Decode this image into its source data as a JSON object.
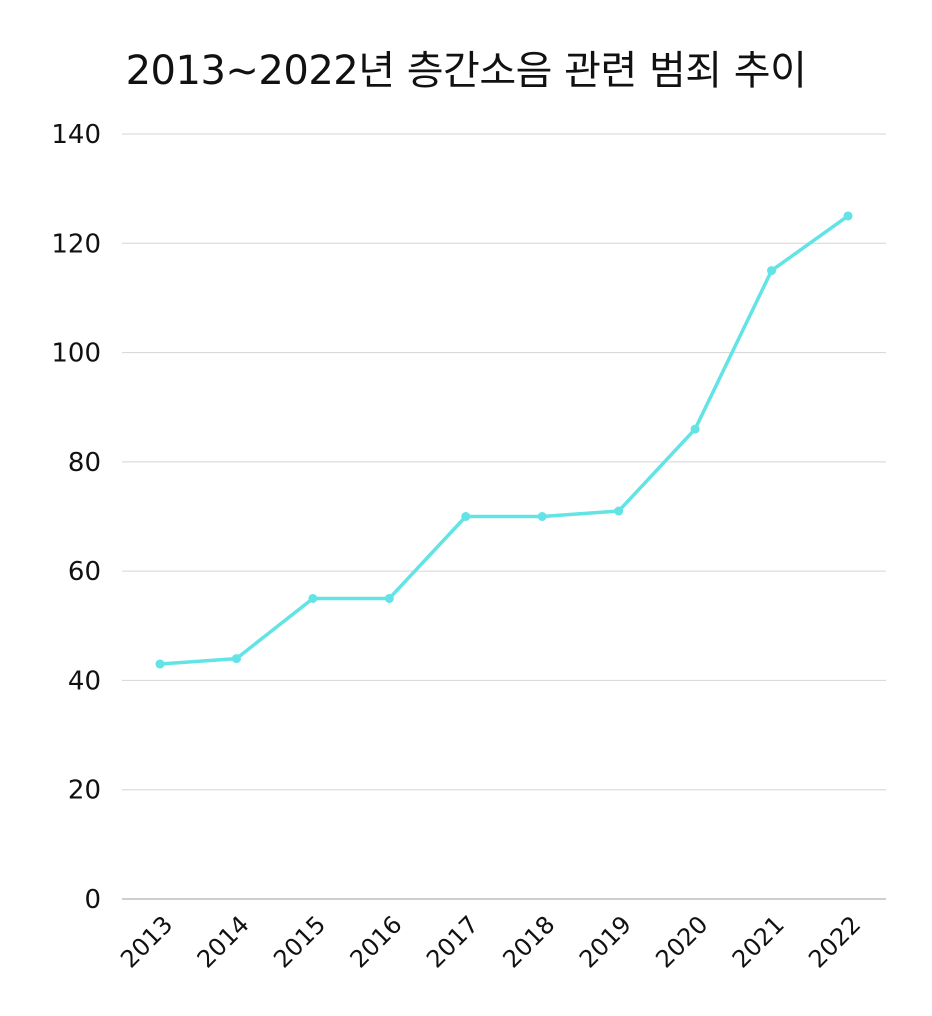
{
  "chart_data": {
    "type": "line",
    "title": "2013~2022년 층간소음 관련 범죄 추이",
    "xlabel": "",
    "ylabel": "",
    "categories": [
      "2013",
      "2014",
      "2015",
      "2016",
      "2017",
      "2018",
      "2019",
      "2020",
      "2021",
      "2022"
    ],
    "series": [
      {
        "values": [
          43,
          44,
          55,
          55,
          70,
          70,
          71,
          86,
          115,
          125
        ],
        "color": "#62e3e6"
      }
    ],
    "ylim": [
      0,
      140
    ],
    "yticks": [
      0,
      20,
      40,
      60,
      80,
      100,
      120,
      140
    ],
    "grid": true,
    "legend": "none",
    "markers": true
  }
}
